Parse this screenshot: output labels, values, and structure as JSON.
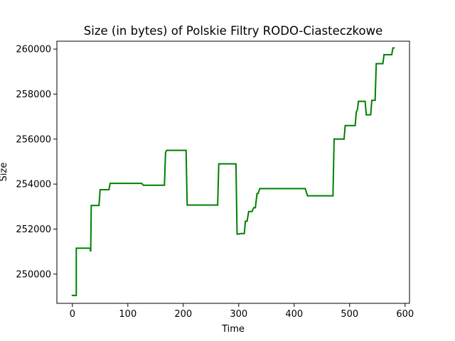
{
  "chart_data": {
    "type": "line",
    "title": "Size (in bytes) of Polskie Filtry RODO-Ciasteczkowe",
    "xlabel": "Time",
    "ylabel": "Size",
    "xlim": [
      -28,
      608
    ],
    "ylim": [
      248700,
      260350
    ],
    "xticks": [
      0,
      100,
      200,
      300,
      400,
      500,
      600
    ],
    "yticks": [
      250000,
      252000,
      254000,
      256000,
      258000,
      260000
    ],
    "grid": false,
    "line_color": "#008000",
    "series": [
      {
        "x": [
          0,
          7,
          7,
          32,
          33,
          34,
          35,
          48,
          50,
          66,
          68,
          125,
          128,
          166,
          168,
          170,
          205,
          207,
          262,
          264,
          295,
          297,
          300,
          304,
          310,
          312,
          315,
          318,
          324,
          327,
          330,
          333,
          335,
          338,
          340,
          420,
          424,
          470,
          472,
          490,
          492,
          510,
          512,
          514,
          516,
          528,
          530,
          538,
          540,
          546,
          548,
          560,
          562,
          576,
          578,
          580
        ],
        "y": [
          249050,
          249050,
          251150,
          251150,
          251000,
          253050,
          253050,
          253050,
          253750,
          253750,
          254030,
          254030,
          253950,
          253950,
          255400,
          255500,
          255500,
          253070,
          253070,
          254900,
          254900,
          251780,
          251780,
          251800,
          251800,
          252350,
          252350,
          252780,
          252780,
          252950,
          252950,
          253580,
          253580,
          253800,
          253800,
          253800,
          253480,
          253480,
          256000,
          256000,
          256600,
          256600,
          257200,
          257300,
          257680,
          257680,
          257080,
          257080,
          257720,
          257720,
          259350,
          259350,
          259750,
          259750,
          260050,
          260050
        ]
      }
    ]
  }
}
